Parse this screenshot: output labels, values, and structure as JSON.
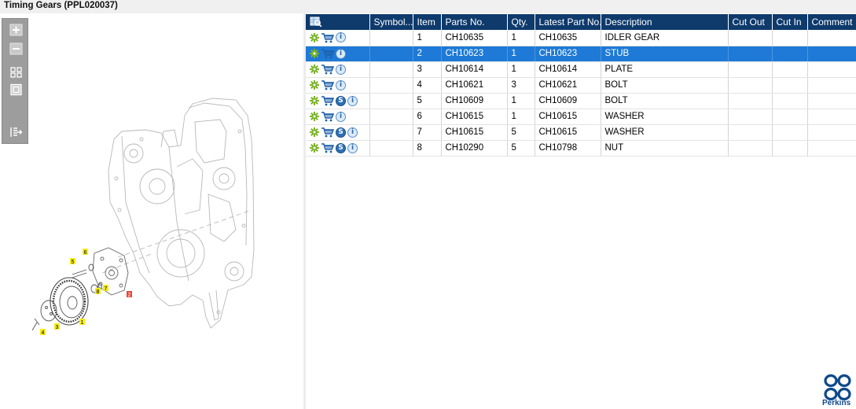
{
  "window": {
    "title": "Timing Gears (PPL020037)"
  },
  "toolbar": {
    "buttons": [
      {
        "name": "zoom-in-icon"
      },
      {
        "name": "zoom-out-icon"
      },
      {
        "name": "fit-all-icon"
      },
      {
        "name": "fit-window-icon"
      },
      {
        "name": "export-icon"
      }
    ]
  },
  "drawing": {
    "callouts": [
      "5",
      "6",
      "8",
      "7",
      "2",
      "1",
      "3",
      "4"
    ],
    "highlight_color": "#f6ec1a",
    "selected_color": "#e8473a"
  },
  "table": {
    "header_icon": "search-table-icon",
    "columns": [
      "Symbol...",
      "Item",
      "Parts No.",
      "Qty.",
      "Latest Part No.",
      "Description",
      "Cut Out",
      "Cut In",
      "Comment"
    ],
    "rows": [
      {
        "item": "1",
        "part_no": "CH10635",
        "qty": "1",
        "latest": "CH10635",
        "desc": "IDLER GEAR",
        "s_badge": false,
        "selected": false
      },
      {
        "item": "2",
        "part_no": "CH10623",
        "qty": "1",
        "latest": "CH10623",
        "desc": "STUB",
        "s_badge": false,
        "selected": true
      },
      {
        "item": "3",
        "part_no": "CH10614",
        "qty": "1",
        "latest": "CH10614",
        "desc": "PLATE",
        "s_badge": false,
        "selected": false
      },
      {
        "item": "4",
        "part_no": "CH10621",
        "qty": "3",
        "latest": "CH10621",
        "desc": "BOLT",
        "s_badge": false,
        "selected": false
      },
      {
        "item": "5",
        "part_no": "CH10609",
        "qty": "1",
        "latest": "CH10609",
        "desc": "BOLT",
        "s_badge": true,
        "selected": false
      },
      {
        "item": "6",
        "part_no": "CH10615",
        "qty": "1",
        "latest": "CH10615",
        "desc": "WASHER",
        "s_badge": false,
        "selected": false
      },
      {
        "item": "7",
        "part_no": "CH10615",
        "qty": "5",
        "latest": "CH10615",
        "desc": "WASHER",
        "s_badge": true,
        "selected": false
      },
      {
        "item": "8",
        "part_no": "CH10290",
        "qty": "5",
        "latest": "CH10798",
        "desc": "NUT",
        "s_badge": true,
        "selected": false
      }
    ],
    "info_badge": "i",
    "s_badge_label": "S",
    "colors": {
      "header": "#0e3a6c",
      "selected": "#1e7ad6",
      "gear": "#7cb52a",
      "cart": "#1d5fa8"
    }
  },
  "brand": {
    "name": "Perkins",
    "color": "#0e4a8c"
  }
}
